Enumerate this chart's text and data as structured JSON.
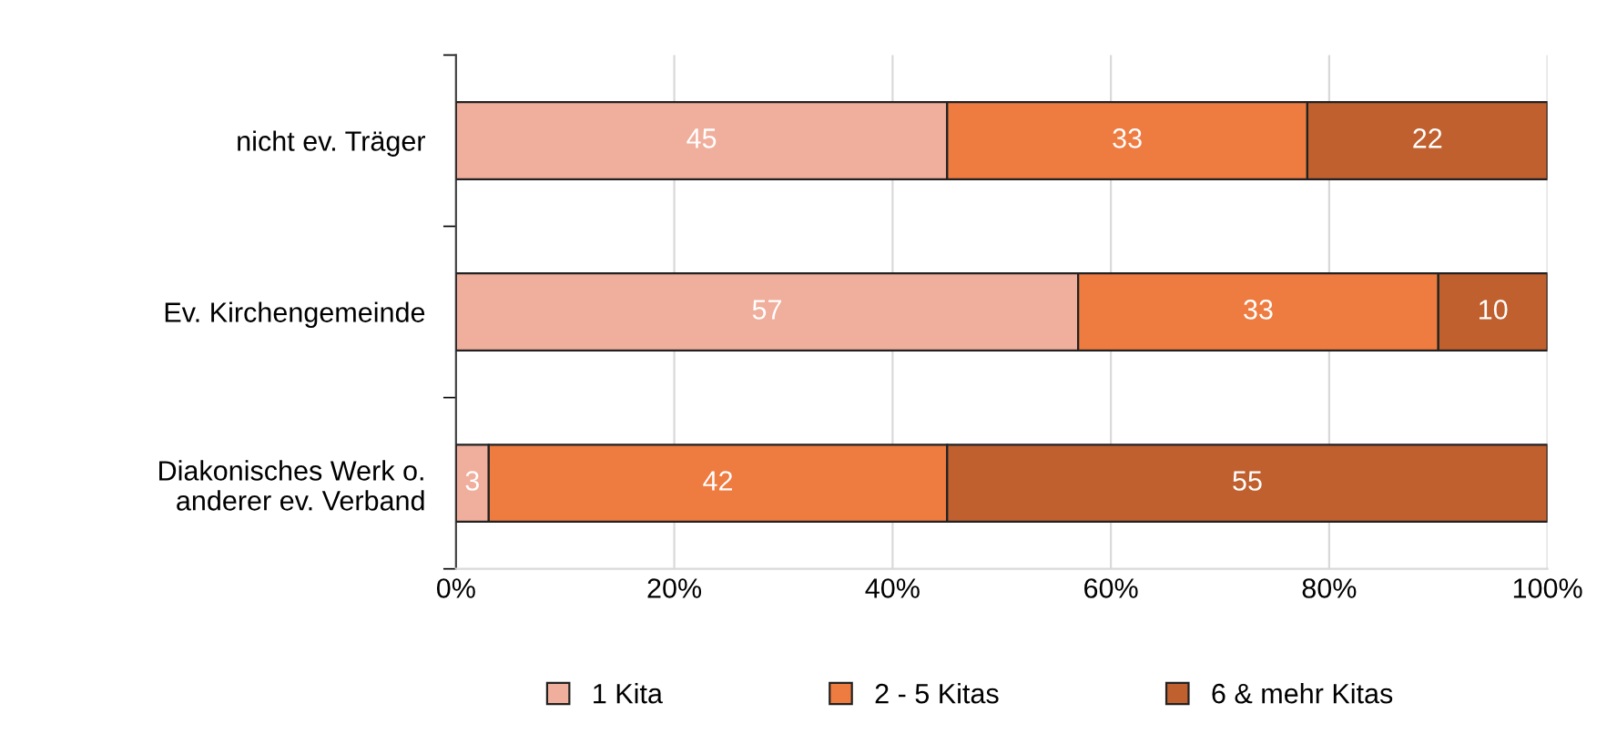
{
  "chart_data": {
    "type": "bar",
    "orientation": "horizontal",
    "stacked": true,
    "categories": [
      "nicht ev. Träger",
      "Ev. Kirchengemeinde",
      "Diakonisches Werk o.\nanderer ev. Verband"
    ],
    "series": [
      {
        "name": "1 Kita",
        "color": "#f0ae9c",
        "values": [
          45,
          57,
          3
        ]
      },
      {
        "name": "2 - 5 Kitas",
        "color": "#ee7b40",
        "values": [
          33,
          33,
          42
        ]
      },
      {
        "name": "6 & mehr Kitas",
        "color": "#c0602f",
        "values": [
          22,
          10,
          55
        ]
      }
    ],
    "xlim": [
      0,
      100
    ],
    "xticks": [
      {
        "value": 0,
        "label": "0%"
      },
      {
        "value": 20,
        "label": "20%"
      },
      {
        "value": 40,
        "label": "40%"
      },
      {
        "value": 60,
        "label": "60%"
      },
      {
        "value": 80,
        "label": "80%"
      },
      {
        "value": 100,
        "label": "100%"
      }
    ],
    "grid": "x",
    "legend": "bottom",
    "data_labels": true
  }
}
